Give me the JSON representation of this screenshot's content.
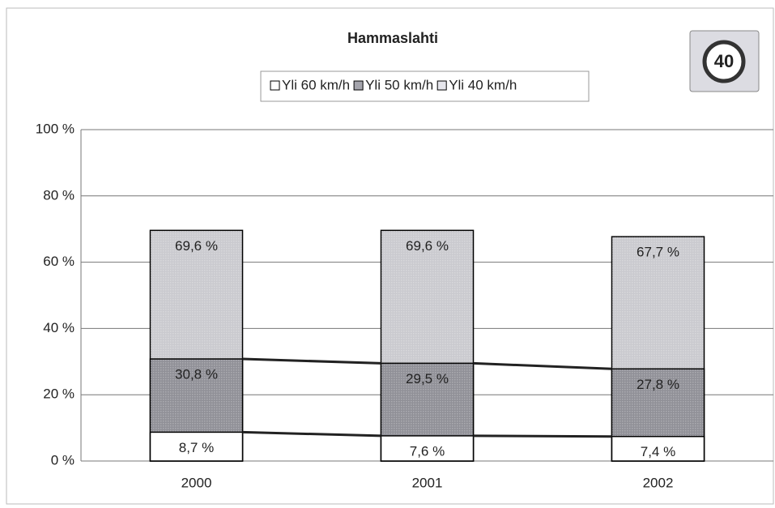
{
  "chart_data": {
    "type": "bar",
    "title": "Hammaslahti",
    "categories": [
      "2000",
      "2001",
      "2002"
    ],
    "series": [
      {
        "name": "Yli 60 km/h",
        "color": "#ffffff",
        "values": [
          8.7,
          7.6,
          7.4
        ],
        "value_labels": [
          "8,7 %",
          "7,6 %",
          "7,4 %"
        ]
      },
      {
        "name": "Yli 50 km/h",
        "color": "#a4a4ac",
        "values": [
          30.8,
          29.5,
          27.8
        ],
        "value_labels": [
          "30,8 %",
          "29,5 %",
          "27,8 %"
        ]
      },
      {
        "name": "Yli 40 km/h",
        "color": "#e6e6ec",
        "values": [
          69.6,
          69.6,
          67.7
        ],
        "value_labels": [
          "69,6 %",
          "69,6 %",
          "67,7 %"
        ]
      }
    ],
    "ylim": [
      0,
      100
    ],
    "yticks": [
      {
        "value": 0,
        "label": "0 %"
      },
      {
        "value": 20,
        "label": "20 %"
      },
      {
        "value": 40,
        "label": "40 %"
      },
      {
        "value": 60,
        "label": "60 %"
      },
      {
        "value": 80,
        "label": "80 %"
      },
      {
        "value": 100,
        "label": "100 %"
      }
    ],
    "grid": true,
    "overlap": true,
    "series_lines": true,
    "annotations": [
      "40"
    ]
  }
}
